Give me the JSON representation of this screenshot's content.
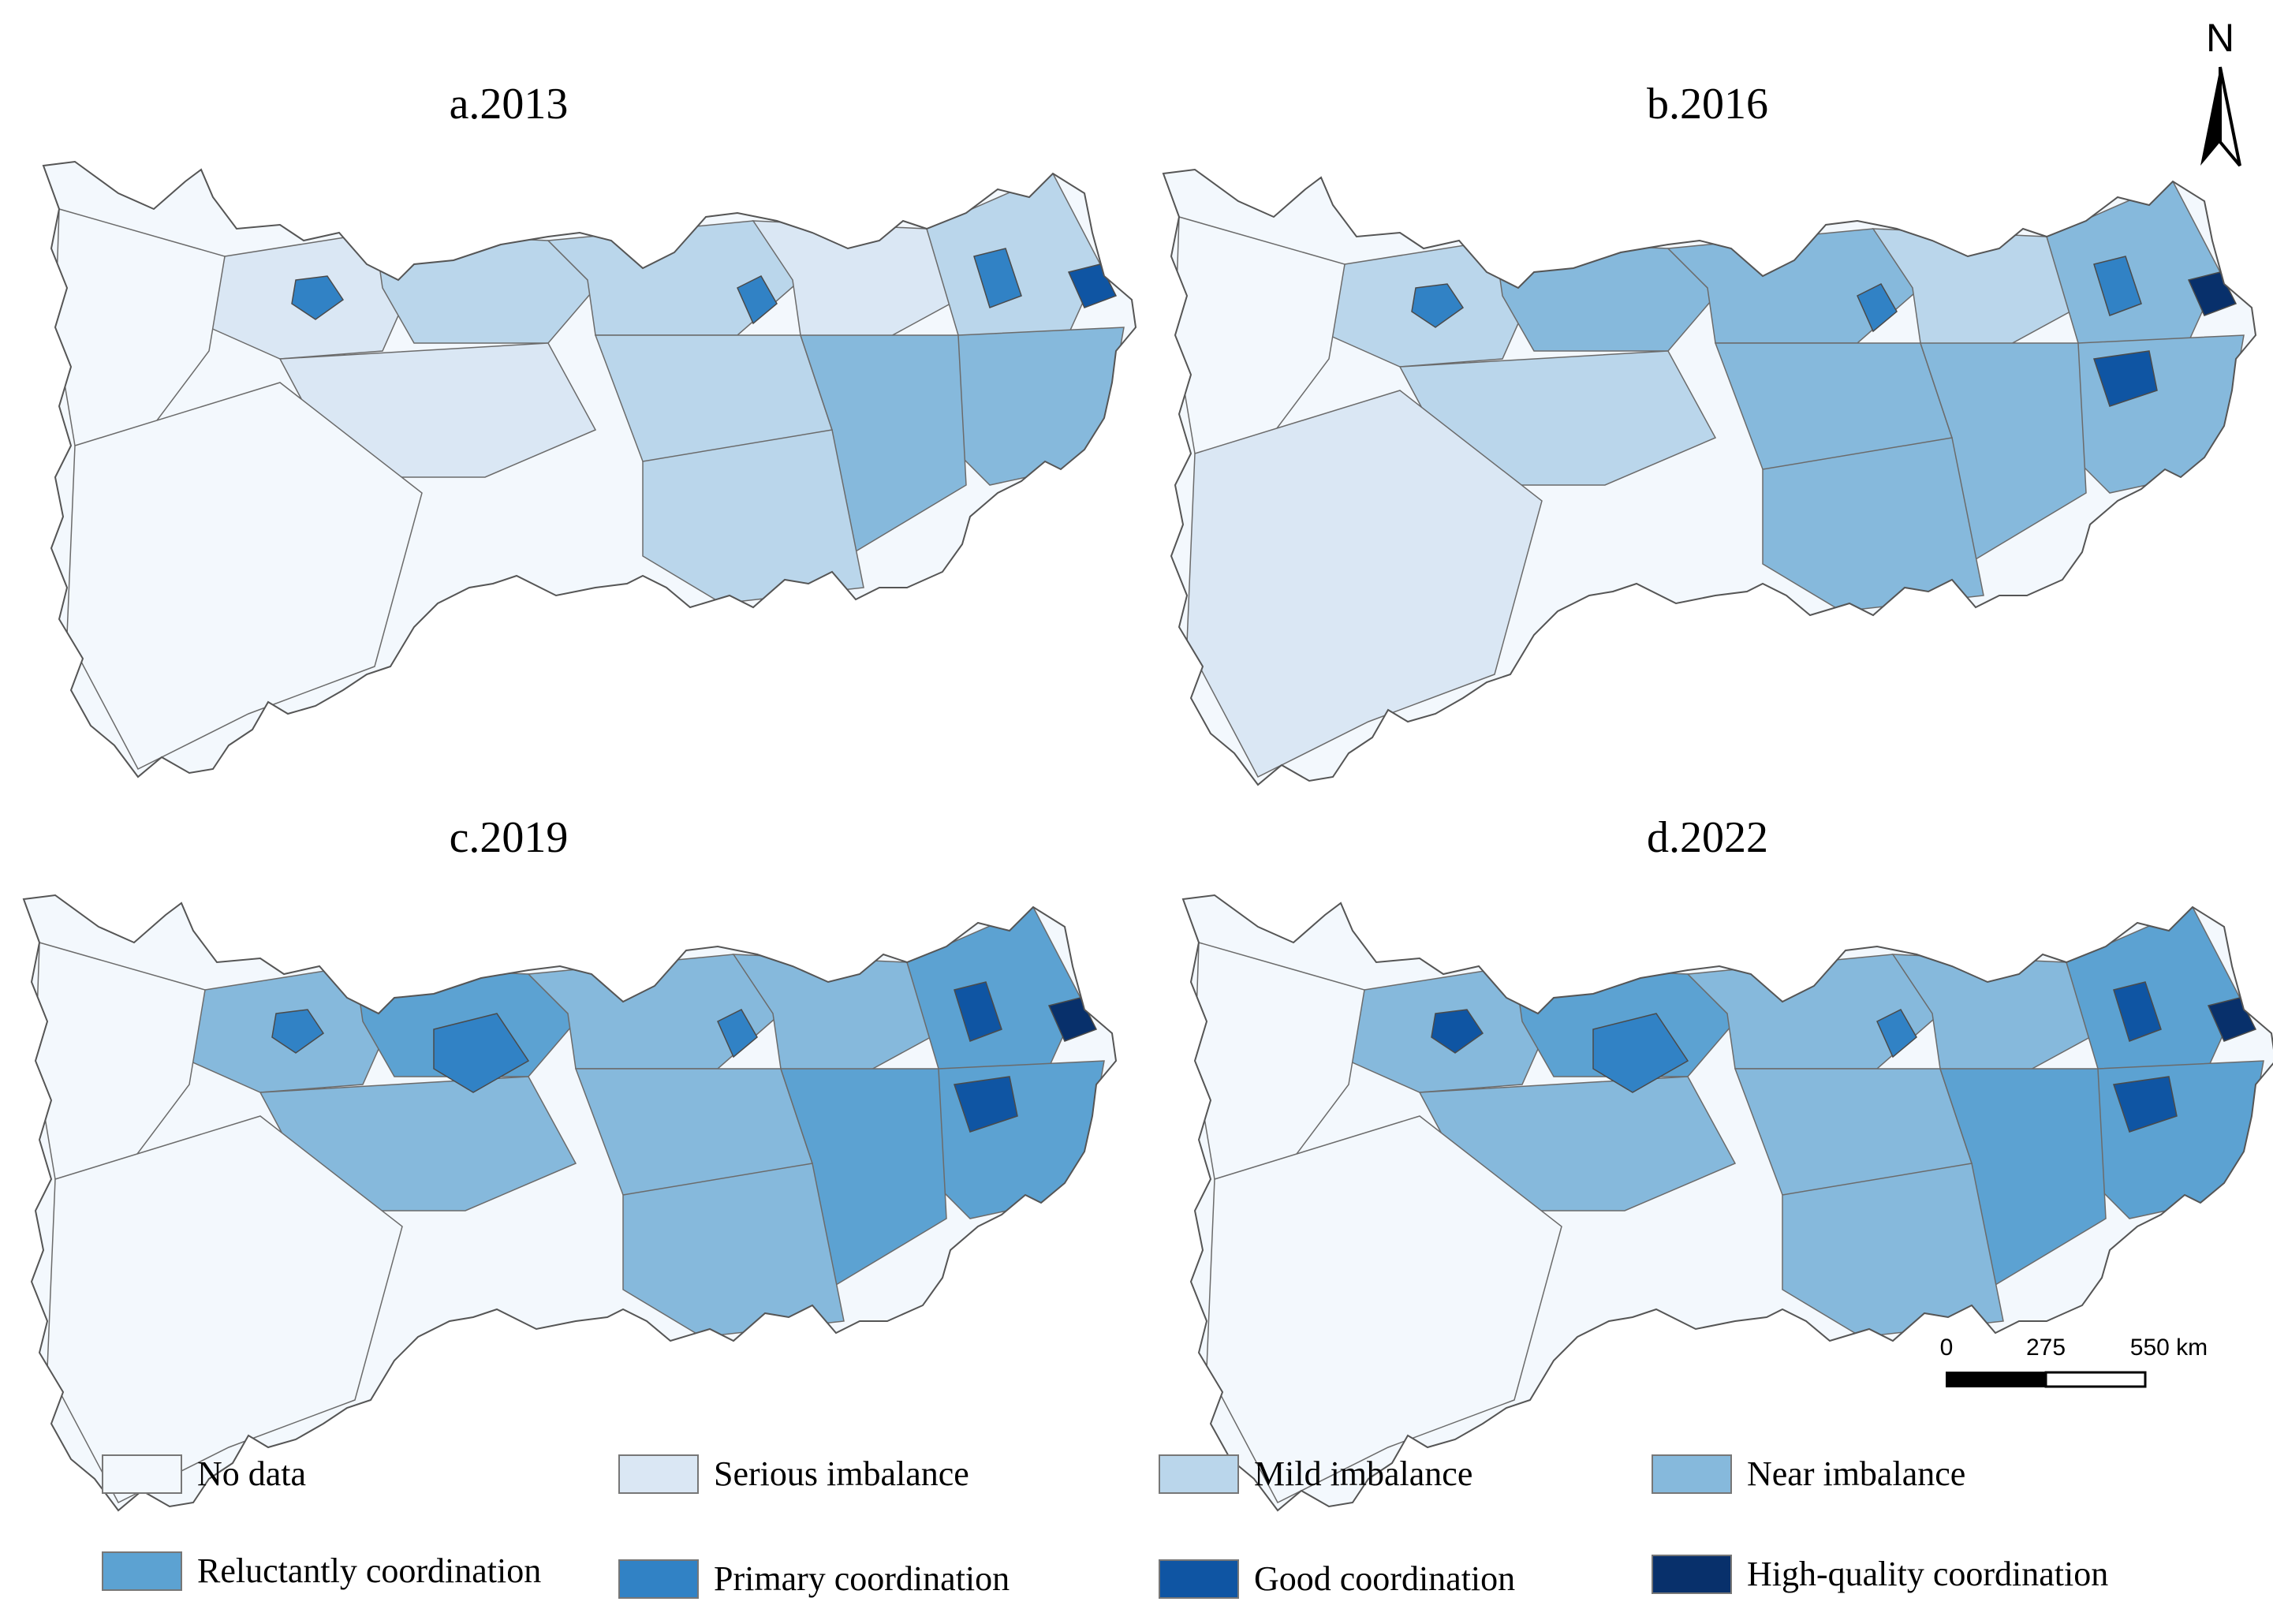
{
  "panels": [
    {
      "title": "a.2013",
      "palette": [
        "#dae7f4",
        "#bad6eb",
        "#bad6eb",
        "#f3f8fd",
        "#dae7f4",
        "#bad6eb",
        "#86b9dc",
        "#bad6eb",
        "#dae7f4",
        "#86b9dc",
        "#bad6eb",
        "#f3f8fd"
      ],
      "hotspots": [
        {
          "id": "sichuan-city",
          "class": "Primary coordination",
          "color": "#3182c5"
        },
        {
          "id": "hubei-city",
          "class": "Primary coordination",
          "color": "#3182c5"
        },
        {
          "id": "jiangsu-city",
          "class": "Primary coordination",
          "color": "#3182c5"
        },
        {
          "id": "shanghai",
          "class": "Good coordination",
          "color": "#0f55a3"
        }
      ]
    },
    {
      "title": "b.2016",
      "palette": [
        "#bad6eb",
        "#86b9dc",
        "#86b9dc",
        "#f3f8fd",
        "#bad6eb",
        "#86b9dc",
        "#86b9dc",
        "#86b9dc",
        "#bad6eb",
        "#86b9dc",
        "#86b9dc",
        "#dae7f4"
      ],
      "hotspots": [
        {
          "id": "sichuan-city",
          "class": "Primary coordination",
          "color": "#3182c5"
        },
        {
          "id": "hubei-city",
          "class": "Primary coordination",
          "color": "#3182c5"
        },
        {
          "id": "jiangsu-city",
          "class": "Primary coordination",
          "color": "#3182c5"
        },
        {
          "id": "zhejiang-city",
          "class": "Good coordination",
          "color": "#0f55a3"
        },
        {
          "id": "shanghai",
          "class": "High-quality coordination",
          "color": "#08306b"
        }
      ]
    },
    {
      "title": "c.2019",
      "palette": [
        "#86b9dc",
        "#5ca2d2",
        "#86b9dc",
        "#f3f8fd",
        "#86b9dc",
        "#5ca2d2",
        "#5ca2d2",
        "#86b9dc",
        "#86b9dc",
        "#5ca2d2",
        "#86b9dc",
        "#f3f8fd"
      ],
      "hotspots": [
        {
          "id": "sichuan-city",
          "class": "Primary coordination",
          "color": "#3182c5"
        },
        {
          "id": "chongqing",
          "class": "Primary coordination",
          "color": "#3182c5"
        },
        {
          "id": "hubei-city",
          "class": "Primary coordination",
          "color": "#3182c5"
        },
        {
          "id": "jiangsu-city",
          "class": "Good coordination",
          "color": "#0f55a3"
        },
        {
          "id": "zhejiang-city",
          "class": "Good coordination",
          "color": "#0f55a3"
        },
        {
          "id": "shanghai",
          "class": "High-quality coordination",
          "color": "#08306b"
        }
      ]
    },
    {
      "title": "d.2022",
      "palette": [
        "#86b9dc",
        "#5ca2d2",
        "#86b9dc",
        "#f3f8fd",
        "#86b9dc",
        "#5ca2d2",
        "#5ca2d2",
        "#86b9dc",
        "#86b9dc",
        "#5ca2d2",
        "#86b9dc",
        "#f3f8fd"
      ],
      "hotspots": [
        {
          "id": "sichuan-city",
          "class": "Good coordination",
          "color": "#0f55a3"
        },
        {
          "id": "chongqing",
          "class": "Primary coordination",
          "color": "#3182c5"
        },
        {
          "id": "hubei-city",
          "class": "Primary coordination",
          "color": "#3182c5"
        },
        {
          "id": "jiangsu-city",
          "class": "Good coordination",
          "color": "#0f55a3"
        },
        {
          "id": "zhejiang-city",
          "class": "Good coordination",
          "color": "#0f55a3"
        },
        {
          "id": "shanghai",
          "class": "High-quality coordination",
          "color": "#08306b"
        }
      ]
    }
  ],
  "north_arrow": {
    "label": "N"
  },
  "scale_bar": {
    "ticks": [
      "0",
      "275",
      "550 km"
    ]
  },
  "legend": [
    {
      "label": "No data",
      "color": "#f3f8fd"
    },
    {
      "label": "Serious imbalance",
      "color": "#dae7f4"
    },
    {
      "label": "Mild imbalance",
      "color": "#bad6eb"
    },
    {
      "label": "Near imbalance",
      "color": "#86b9dc"
    },
    {
      "label": "Reluctantly coordination",
      "color": "#5ca2d2"
    },
    {
      "label": "Primary coordination",
      "color": "#3182c5"
    },
    {
      "label": "Good coordination",
      "color": "#0f55a3"
    },
    {
      "label": "High-quality coordination",
      "color": "#08306b"
    }
  ]
}
